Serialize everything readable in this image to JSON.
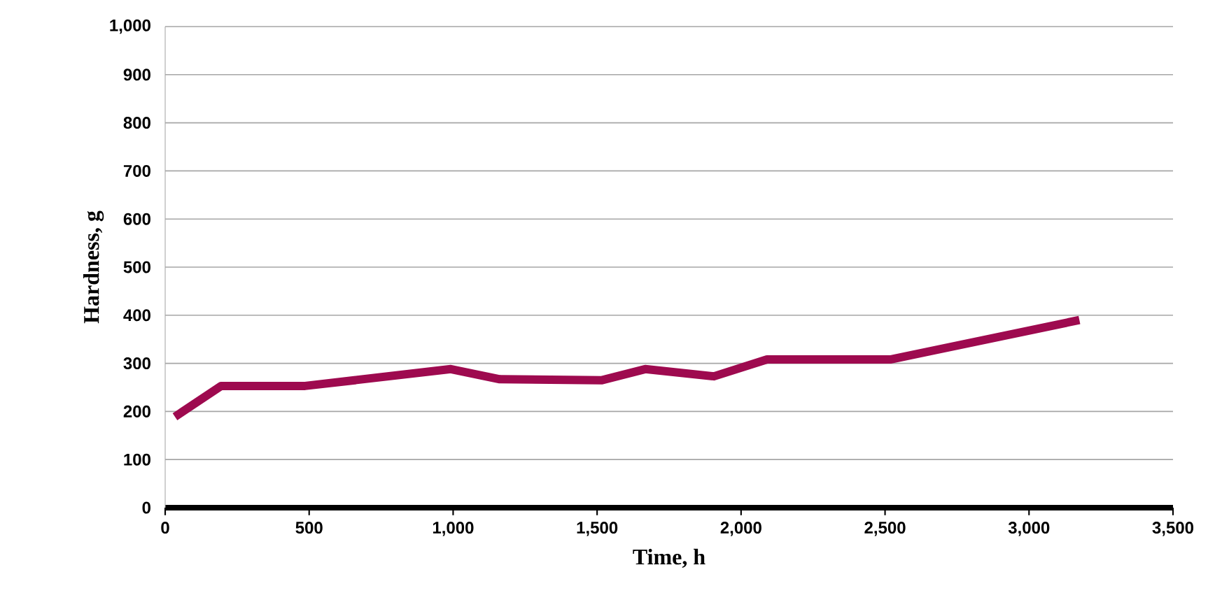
{
  "chart_data": {
    "type": "line",
    "xlabel": "Time, h",
    "ylabel": "Hardness, g",
    "x": [
      34,
      194,
      486,
      992,
      1162,
      1517,
      1667,
      1906,
      2090,
      2518,
      3175
    ],
    "series": [
      {
        "color": "#9e0a4f",
        "values": [
          189,
          253,
          253,
          288,
          267,
          265,
          288,
          273,
          308,
          308,
          390
        ]
      }
    ],
    "xlim": [
      0,
      3500
    ],
    "ylim": [
      0,
      1000
    ],
    "xticks": [
      0,
      500,
      {
        "value": 1000,
        "label": "1,000"
      },
      {
        "value": 1500,
        "label": "1,500"
      },
      {
        "value": 2000,
        "label": "2,000"
      },
      {
        "value": 2500,
        "label": "2,500"
      },
      {
        "value": 3000,
        "label": "3,000"
      },
      {
        "value": 3500,
        "label": "3,500"
      }
    ],
    "yticks": [
      0,
      100,
      200,
      300,
      400,
      500,
      600,
      700,
      800,
      900,
      {
        "value": 1000,
        "label": "1,000"
      }
    ],
    "grid": "y"
  }
}
